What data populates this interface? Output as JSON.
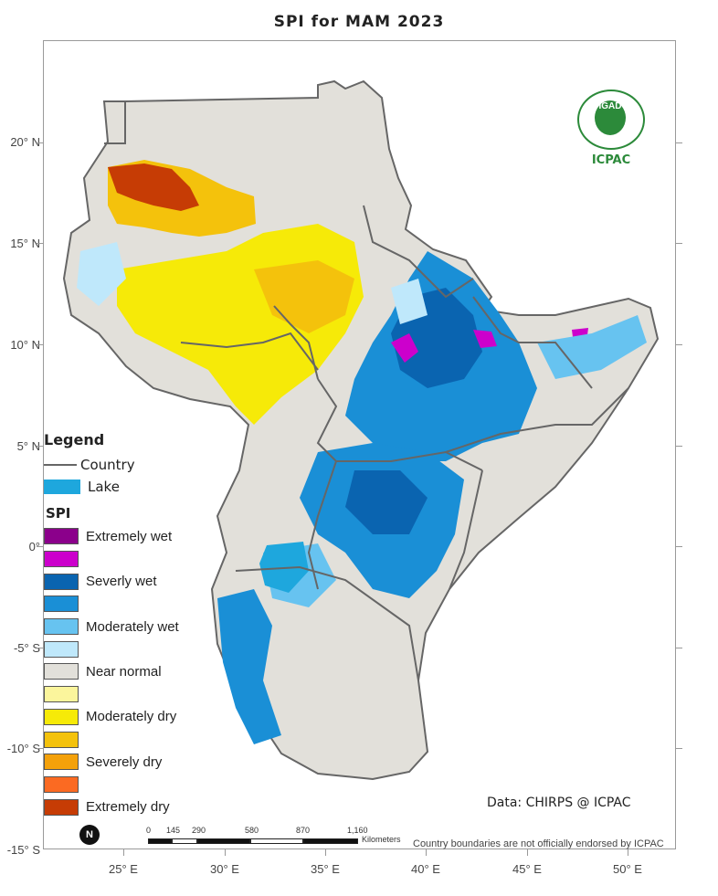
{
  "map": {
    "title": "SPI for MAM 2023",
    "latitude_labels": [
      "20° N",
      "15° N",
      "10° N",
      "5° N",
      "0°",
      "-5° S",
      "-10° S",
      "-15° S"
    ],
    "longitude_labels": [
      "25° E",
      "30° E",
      "35° E",
      "40° E",
      "45° E",
      "50° E"
    ],
    "colors": {
      "extremely_wet": "#8b008b",
      "very_wet": "#cc00cc",
      "severely_wet": "#0a64b0",
      "wet": "#1a8fd6",
      "moderately_wet": "#67c3f0",
      "slightly_wet": "#bfe8fb",
      "near_normal": "#e2e0da",
      "slightly_dry": "#fbf59c",
      "moderately_dry": "#f6ea08",
      "dry": "#f4c20c",
      "severely_dry": "#f4a10a",
      "very_dry": "#fb6a22",
      "extremely_dry": "#c63c05",
      "lake": "#1ea7dd",
      "border": "#666666"
    }
  },
  "legend": {
    "title": "Legend",
    "country_label": "Country",
    "lake_label": "Lake",
    "spi_title": "SPI",
    "classes": [
      {
        "label": "Extremely wet",
        "color": "#8b008b"
      },
      {
        "label": "",
        "color": "#cc00cc"
      },
      {
        "label": "Severly wet",
        "color": "#0a64b0"
      },
      {
        "label": "",
        "color": "#1a8fd6"
      },
      {
        "label": "Moderately wet",
        "color": "#67c3f0"
      },
      {
        "label": "",
        "color": "#bfe8fb"
      },
      {
        "label": "Near normal",
        "color": "#e2e0da"
      },
      {
        "label": "",
        "color": "#fbf59c"
      },
      {
        "label": "Moderately dry",
        "color": "#f6ea08"
      },
      {
        "label": "",
        "color": "#f4c20c"
      },
      {
        "label": "Severely dry",
        "color": "#f4a10a"
      },
      {
        "label": "",
        "color": "#fb6a22"
      },
      {
        "label": "Extremely dry",
        "color": "#c63c05"
      }
    ]
  },
  "footer": {
    "credit": "Data: CHIRPS @ ICPAC",
    "disclaimer": "Country boundaries are not officially endorsed by ICPAC",
    "north_symbol": "N",
    "scale_labels": [
      "0",
      "145",
      "290",
      "580",
      "870",
      "1,160"
    ],
    "scale_unit": "Kilometers"
  },
  "logo": {
    "org": "IGAD",
    "center": "ICPAC"
  }
}
